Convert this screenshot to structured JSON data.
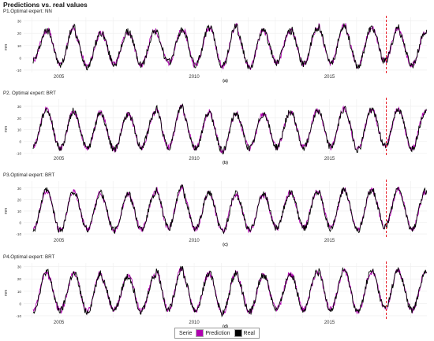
{
  "title": "Predictions vs. real values",
  "ylabel": "mm",
  "colors": {
    "prediction": "#b000b0",
    "real": "#000000",
    "cutoff": "#e8202a",
    "grid": "#eeeeee",
    "axis": "#666666"
  },
  "legend": {
    "title": "Serie",
    "items": [
      "Prediction",
      "Real"
    ]
  },
  "chart_data": [
    {
      "type": "line",
      "title": "P1.Optimal expert: NN",
      "caption": "(a)",
      "x_ticks": [
        "2005",
        "2010",
        "2015"
      ],
      "y_ticks": [
        -10,
        0,
        10,
        20,
        30
      ],
      "ylim": [
        -12,
        33
      ],
      "x_range": [
        2003.7,
        2018.6
      ],
      "cutoff_x": 2017.1,
      "peaks": [
        22,
        25,
        20,
        21,
        22,
        22,
        24,
        26,
        22,
        22,
        24,
        27,
        24,
        25,
        21,
        23,
        20
      ],
      "troughs": [
        -2,
        -6,
        -7,
        -5,
        -6,
        -4,
        -6,
        -7,
        -8,
        -4,
        -5,
        -5,
        -7,
        -3,
        -6,
        -8
      ],
      "series": [
        {
          "name": "Prediction"
        },
        {
          "name": "Real"
        }
      ]
    },
    {
      "type": "line",
      "title": "P2. Optimal expert: BRT",
      "caption": "(b)",
      "x_ticks": [
        "2005",
        "2010",
        "2015"
      ],
      "y_ticks": [
        -10,
        0,
        10,
        20,
        30
      ],
      "ylim": [
        -11,
        36
      ],
      "x_range": [
        2003.7,
        2018.6
      ],
      "cutoff_x": 2017.1,
      "peaks": [
        27,
        26,
        25,
        23,
        24,
        30,
        25,
        24,
        23,
        25,
        26,
        28,
        27,
        28,
        26,
        30,
        25
      ],
      "troughs": [
        -4,
        -6,
        -6,
        -7,
        -5,
        -5,
        -6,
        -8,
        -6,
        -5,
        -5,
        -5,
        -7,
        -4,
        -6,
        -8
      ],
      "series": [
        {
          "name": "Prediction"
        },
        {
          "name": "Real"
        }
      ]
    },
    {
      "type": "line",
      "title": "P3.Optimal expert: BRT",
      "caption": "(c)",
      "x_ticks": [
        "2005",
        "2010",
        "2015"
      ],
      "y_ticks": [
        -10,
        0,
        10,
        20,
        30
      ],
      "ylim": [
        -12,
        36
      ],
      "x_range": [
        2003.7,
        2018.6
      ],
      "cutoff_x": 2017.1,
      "peaks": [
        28,
        27,
        26,
        24,
        25,
        31,
        26,
        25,
        24,
        26,
        27,
        29,
        28,
        29,
        27,
        31,
        26
      ],
      "troughs": [
        -6,
        -7,
        -6,
        -7,
        -6,
        -5,
        -6,
        -8,
        -7,
        -5,
        -5,
        -5,
        -7,
        -4,
        -6,
        -8
      ],
      "series": [
        {
          "name": "Prediction"
        },
        {
          "name": "Real"
        }
      ]
    },
    {
      "type": "line",
      "title": "P4.Optimal expert: BRT",
      "caption": "(d)",
      "x_ticks": [
        "2005",
        "2010",
        "2015"
      ],
      "y_ticks": [
        -10,
        0,
        10,
        20,
        30
      ],
      "ylim": [
        -12,
        33
      ],
      "x_range": [
        2003.7,
        2018.6
      ],
      "cutoff_x": 2017.1,
      "peaks": [
        26,
        24,
        25,
        22,
        23,
        29,
        24,
        25,
        23,
        24,
        25,
        27,
        26,
        27,
        25,
        28,
        24
      ],
      "troughs": [
        -6,
        -6,
        -7,
        -5,
        -6,
        -5,
        -6,
        -8,
        -7,
        -5,
        -5,
        -5,
        -7,
        -4,
        -6,
        -8
      ],
      "series": [
        {
          "name": "Prediction"
        },
        {
          "name": "Real"
        }
      ]
    }
  ]
}
